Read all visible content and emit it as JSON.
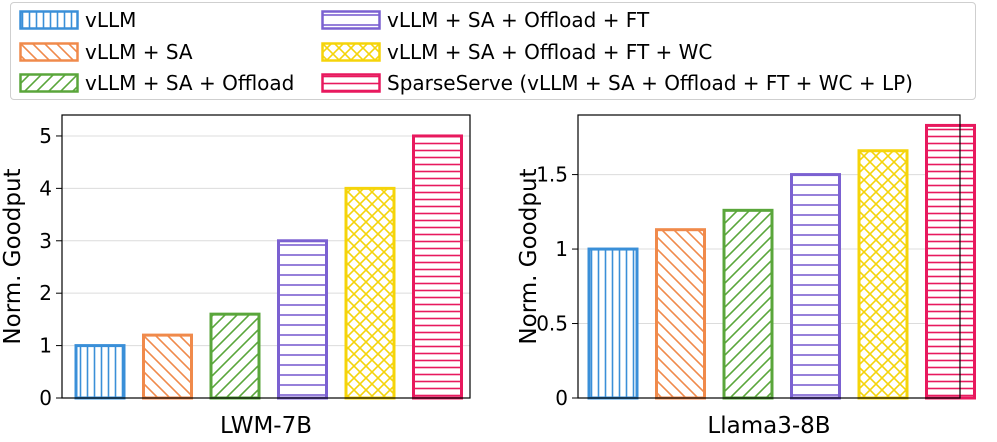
{
  "legend": {
    "items": [
      {
        "label": "vLLM",
        "color": "#3a8fd8",
        "pattern": "vertical"
      },
      {
        "label": "vLLM + SA",
        "color": "#f08a4b",
        "pattern": "diag-back"
      },
      {
        "label": "vLLM + SA + Offload",
        "color": "#5aa63b",
        "pattern": "diag-fwd"
      },
      {
        "label": "vLLM + SA + Offload + FT",
        "color": "#7b61d1",
        "pattern": "horizontal-sparse"
      },
      {
        "label": "vLLM + SA + Offload + FT + WC",
        "color": "#f5d40a",
        "pattern": "cross"
      },
      {
        "label": "SparseServe (vLLM + SA + Offload + FT + WC + LP)",
        "color": "#e8195e",
        "pattern": "horizontal-dense"
      }
    ]
  },
  "chart_data": [
    {
      "type": "bar",
      "title": "",
      "xlabel": "LWM-7B",
      "ylabel": "Norm. Goodput",
      "ylim": [
        0,
        5.4
      ],
      "yticks": [
        0,
        1,
        2,
        3,
        4,
        5
      ],
      "ytick_labels": [
        "0",
        "1",
        "2",
        "3",
        "4",
        "5"
      ],
      "grid": "horizontal",
      "categories": [
        "vLLM",
        "vLLM + SA",
        "vLLM + SA + Offload",
        "vLLM + SA + Offload + FT",
        "vLLM + SA + Offload + FT + WC",
        "SparseServe (vLLM + SA + Offload + FT + WC + LP)"
      ],
      "values": [
        1.0,
        1.2,
        1.6,
        3.0,
        4.0,
        5.0
      ]
    },
    {
      "type": "bar",
      "title": "",
      "xlabel": "Llama3-8B",
      "ylabel": "Norm. Goodput",
      "ylim": [
        0,
        1.9
      ],
      "yticks": [
        0,
        0.5,
        1,
        1.5
      ],
      "ytick_labels": [
        "0",
        "0.5",
        "1",
        "1.5"
      ],
      "grid": "horizontal",
      "categories": [
        "vLLM",
        "vLLM + SA",
        "vLLM + SA + Offload",
        "vLLM + SA + Offload + FT",
        "vLLM + SA + Offload + FT + WC",
        "SparseServe (vLLM + SA + Offload + FT + WC + LP)"
      ],
      "values": [
        1.0,
        1.13,
        1.26,
        1.5,
        1.66,
        1.83
      ]
    }
  ]
}
